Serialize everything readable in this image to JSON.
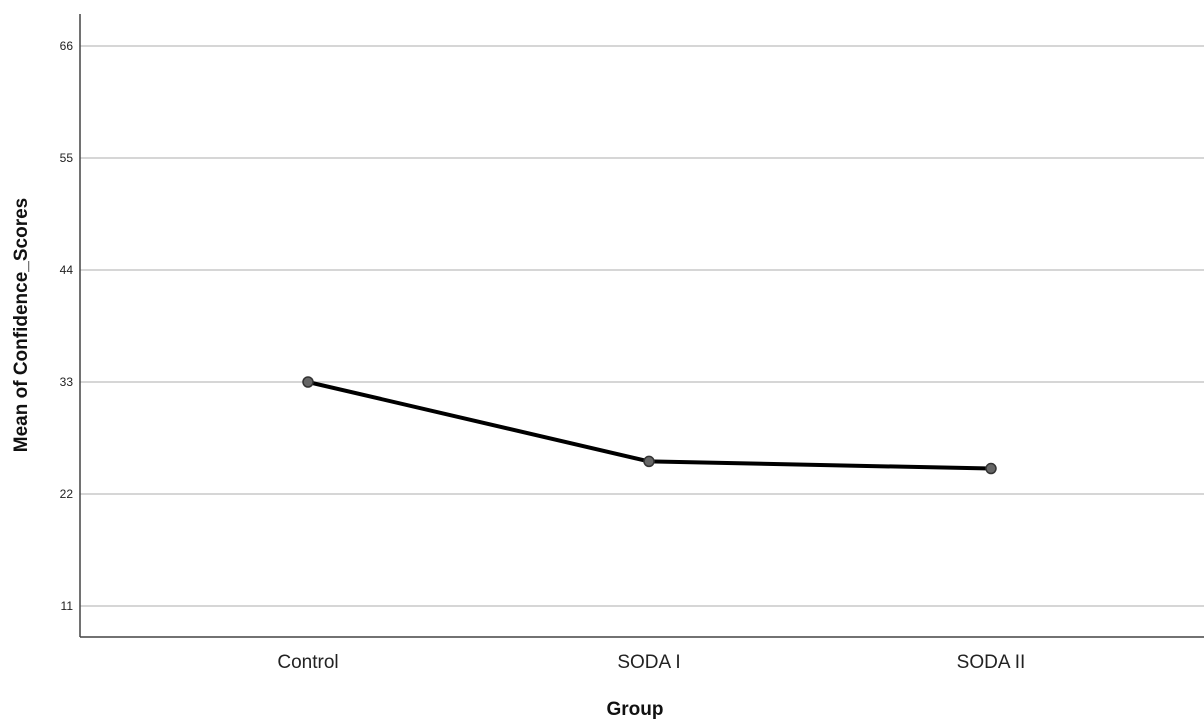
{
  "chart_data": {
    "type": "line",
    "title": "",
    "xlabel": "Group",
    "ylabel": "Mean of Confidence_Scores",
    "categories": [
      "Control",
      "SODA I",
      "SODA II"
    ],
    "series": [
      {
        "values": [
          33.0,
          25.2,
          24.5
        ]
      }
    ],
    "yticks": [
      11,
      22,
      33,
      44,
      55,
      66
    ],
    "ylim": [
      8,
      69
    ],
    "grid": true,
    "legend": "none",
    "colors": {
      "line": "#000000",
      "marker_fill": "#666666",
      "marker_stroke": "#333333",
      "grid": "#c8c8c8",
      "axis": "#444444"
    }
  }
}
